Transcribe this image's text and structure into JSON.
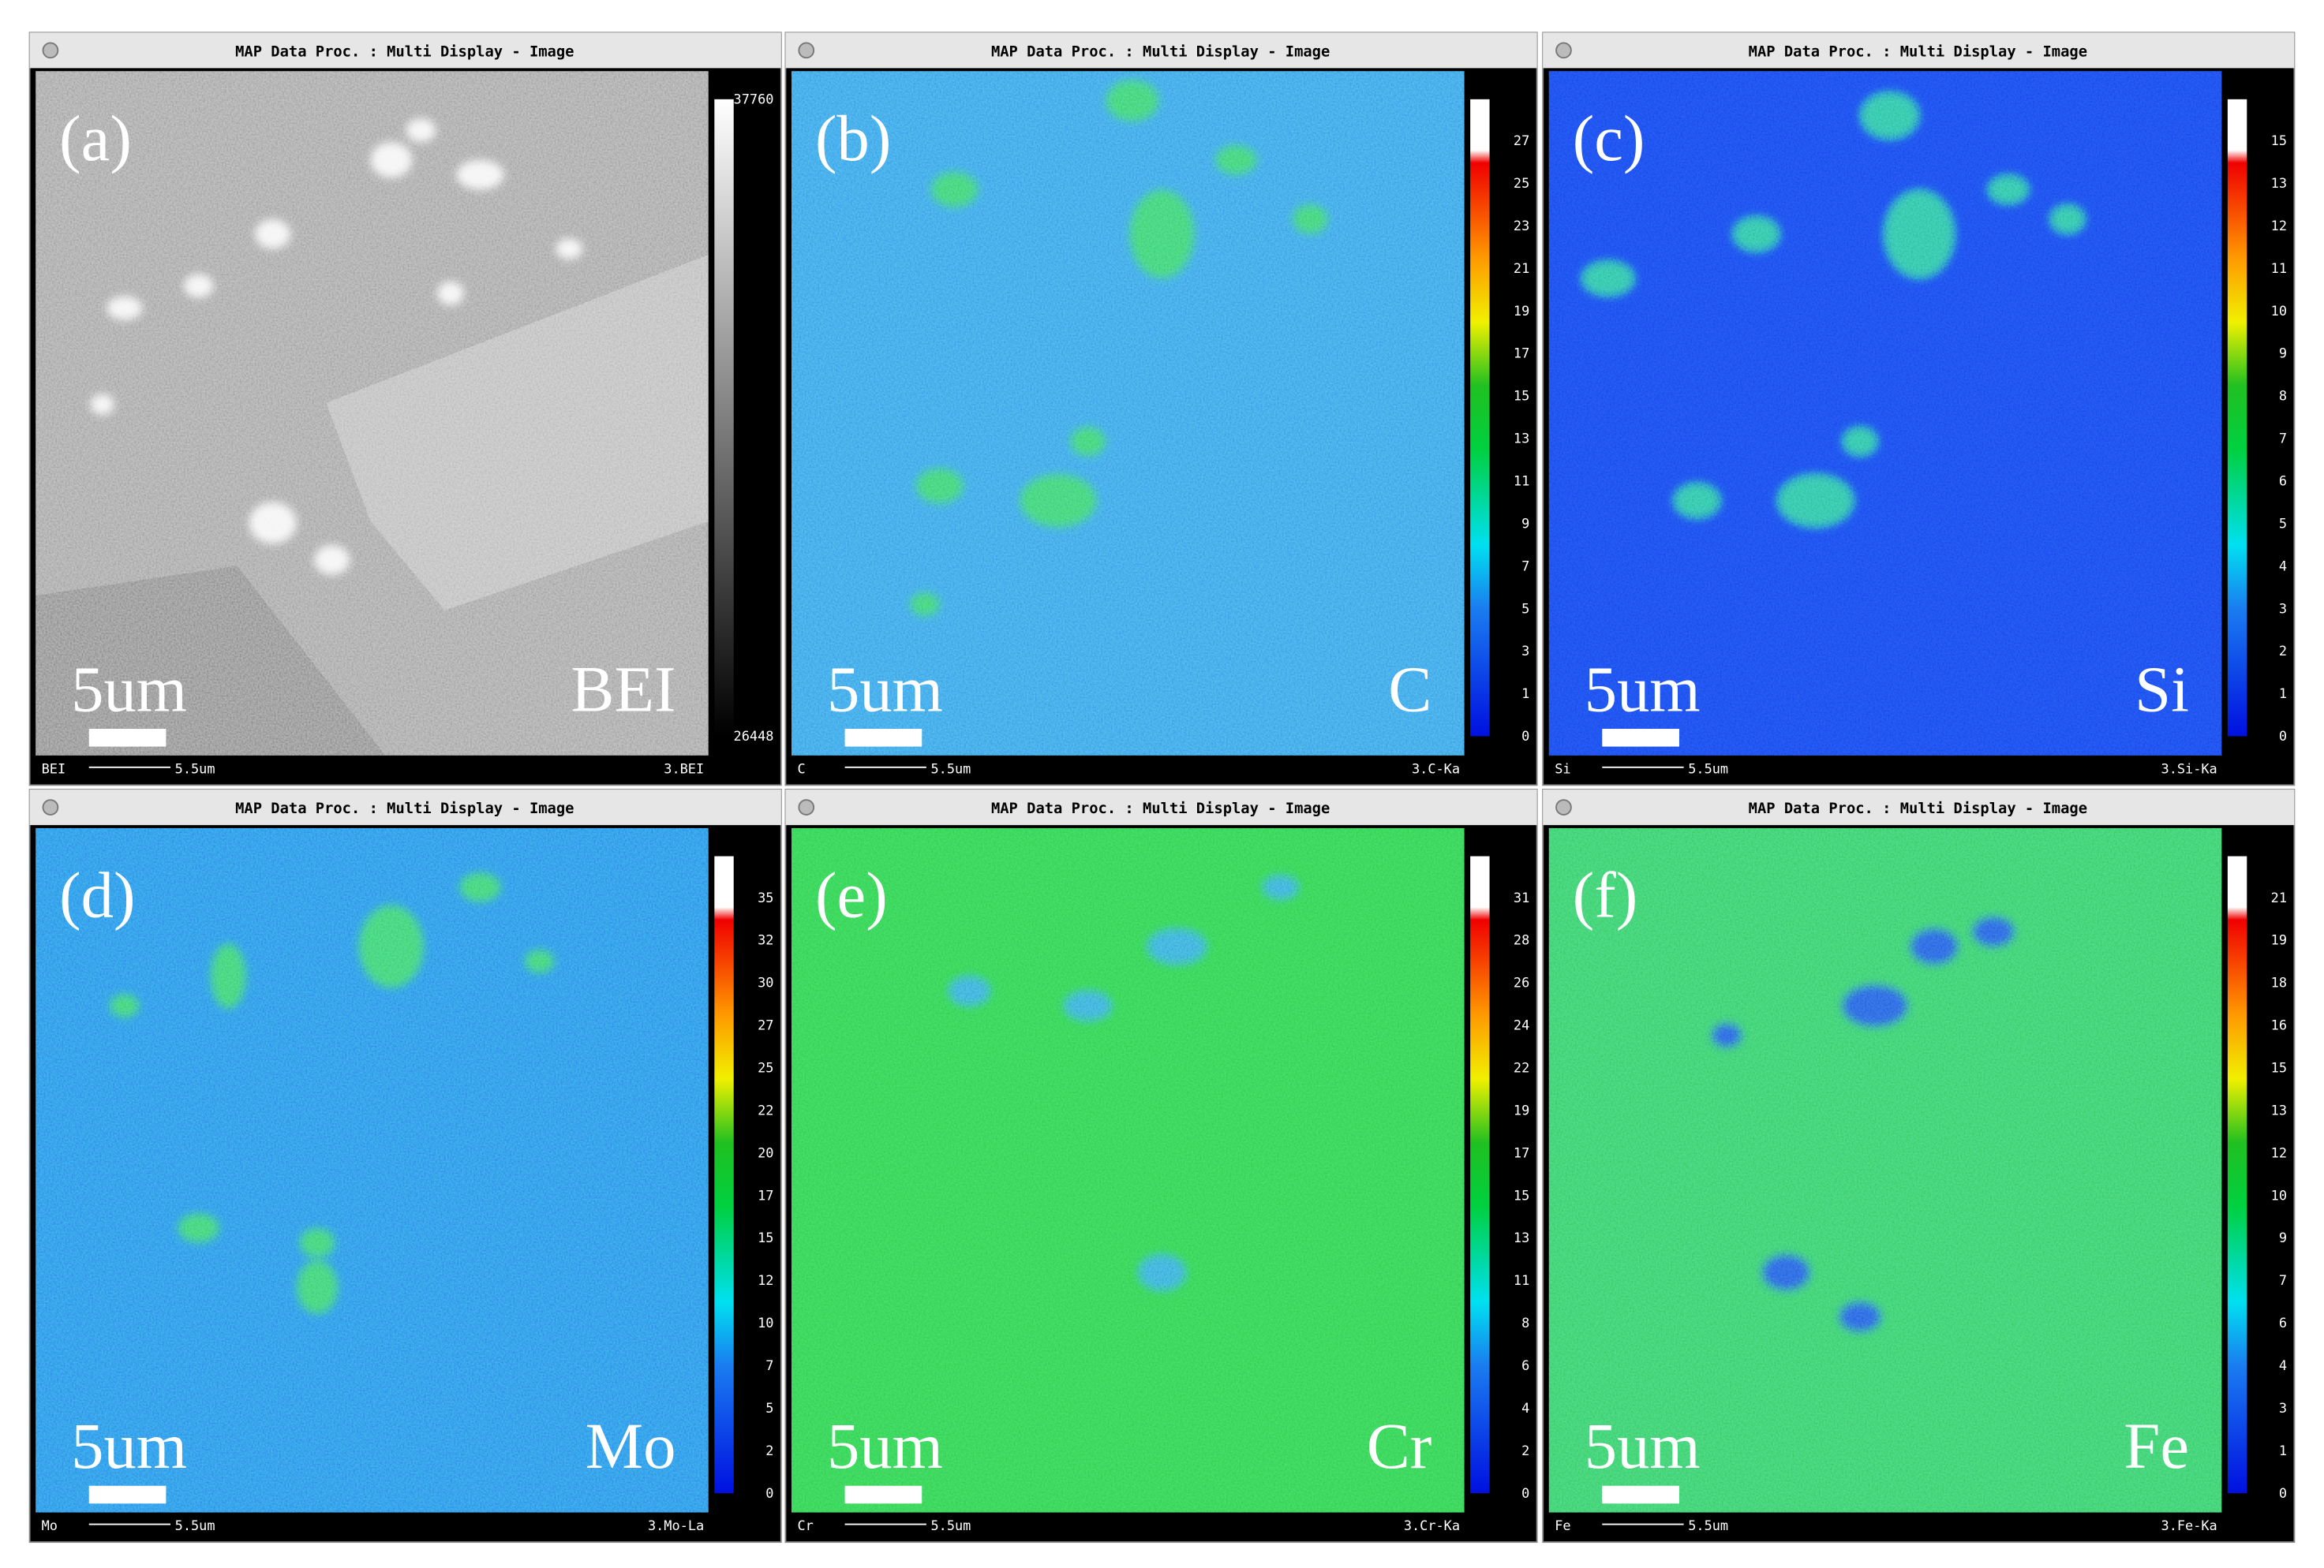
{
  "panels": [
    {
      "window_title": "MAP Data Proc. : Multi Display - Image",
      "label": "(a)",
      "element": "BEI",
      "scale_bar": "5um",
      "colorbar": {
        "kind": "gray",
        "ticks": [
          37760,
          26448
        ]
      },
      "footer": {
        "left": "BEI",
        "scale": "5.5um",
        "right": "3.BEI"
      }
    },
    {
      "window_title": "MAP Data Proc. : Multi Display - Image",
      "label": "(b)",
      "element": "C",
      "scale_bar": "5um",
      "colorbar": {
        "kind": "color",
        "ticks": [
          27,
          25,
          23,
          21,
          19,
          17,
          15,
          13,
          11,
          9,
          7,
          5,
          3,
          1,
          0
        ]
      },
      "footer": {
        "left": "C",
        "scale": "5.5um",
        "right": "3.C-Ka"
      }
    },
    {
      "window_title": "MAP Data Proc. : Multi Display - Image",
      "label": "(c)",
      "element": "Si",
      "scale_bar": "5um",
      "colorbar": {
        "kind": "color",
        "ticks": [
          15,
          13,
          12,
          11,
          10,
          9,
          8,
          7,
          6,
          5,
          4,
          3,
          2,
          1,
          0
        ]
      },
      "footer": {
        "left": "Si",
        "scale": "5.5um",
        "right": "3.Si-Ka"
      }
    },
    {
      "window_title": "MAP Data Proc. : Multi Display - Image",
      "label": "(d)",
      "element": "Mo",
      "scale_bar": "5um",
      "colorbar": {
        "kind": "color",
        "ticks": [
          35,
          32,
          30,
          27,
          25,
          22,
          20,
          17,
          15,
          12,
          10,
          7,
          5,
          2,
          0
        ]
      },
      "footer": {
        "left": "Mo",
        "scale": "5.5um",
        "right": "3.Mo-La"
      }
    },
    {
      "window_title": "MAP Data Proc. : Multi Display - Image",
      "label": "(e)",
      "element": "Cr",
      "scale_bar": "5um",
      "colorbar": {
        "kind": "color",
        "ticks": [
          31,
          28,
          26,
          24,
          22,
          19,
          17,
          15,
          13,
          11,
          8,
          6,
          4,
          2,
          0
        ]
      },
      "footer": {
        "left": "Cr",
        "scale": "5.5um",
        "right": "3.Cr-Ka"
      }
    },
    {
      "window_title": "MAP Data Proc. : Multi Display - Image",
      "label": "(f)",
      "element": "Fe",
      "scale_bar": "5um",
      "colorbar": {
        "kind": "color",
        "ticks": [
          21,
          19,
          18,
          16,
          15,
          13,
          12,
          10,
          9,
          7,
          6,
          4,
          3,
          1,
          0
        ]
      },
      "footer": {
        "left": "Fe",
        "scale": "5.5um",
        "right": "3.Fe-Ka"
      }
    }
  ]
}
